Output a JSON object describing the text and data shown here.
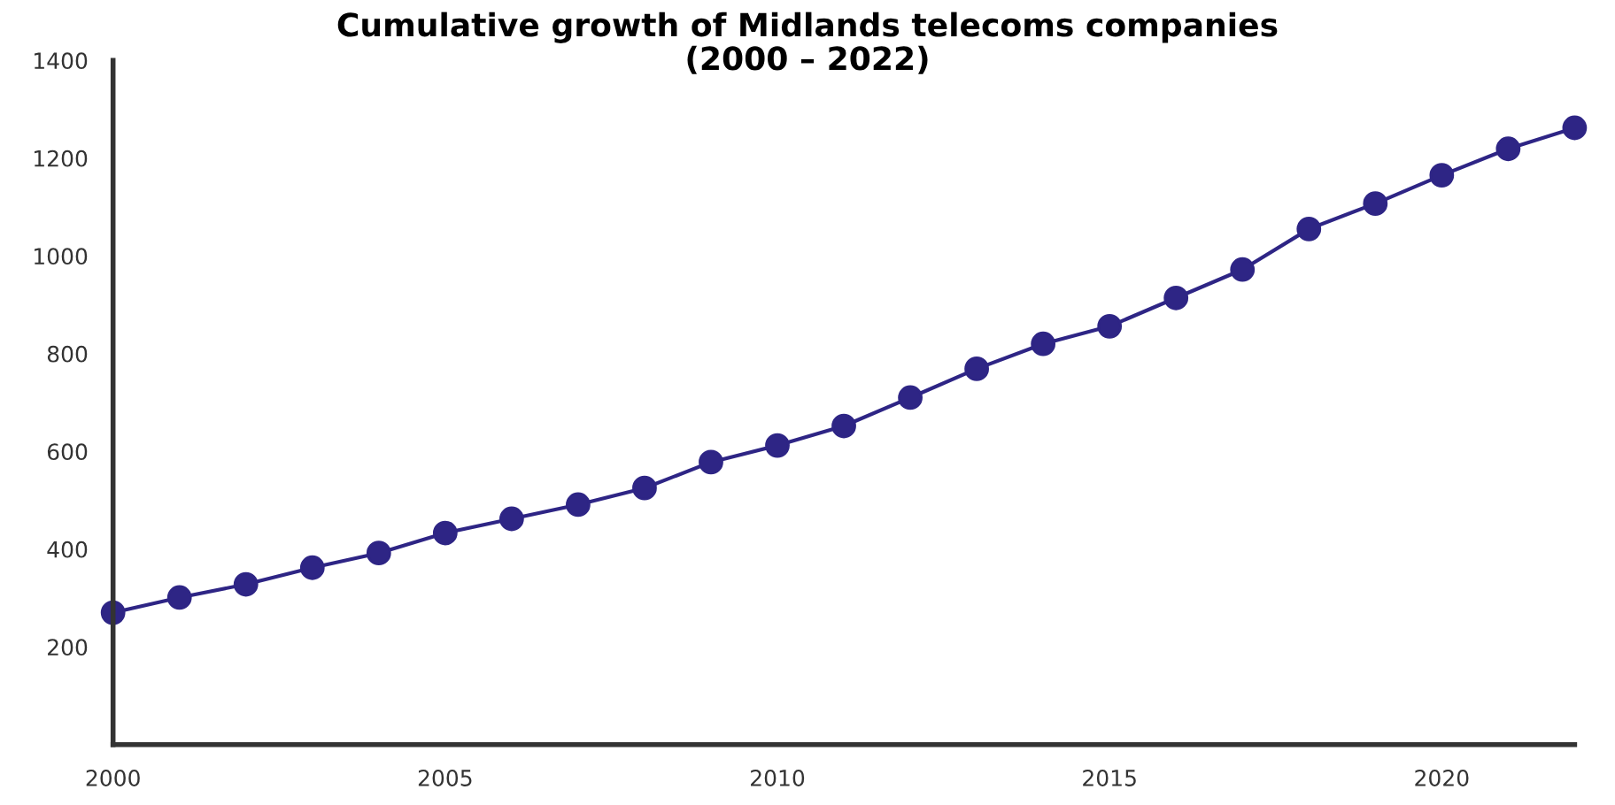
{
  "chart_data": {
    "type": "line",
    "title": "Cumulative growth of Midlands telecoms companies\n(2000 – 2022)",
    "x": [
      2000,
      2001,
      2002,
      2003,
      2004,
      2005,
      2006,
      2007,
      2008,
      2009,
      2010,
      2011,
      2012,
      2013,
      2014,
      2015,
      2016,
      2017,
      2018,
      2019,
      2020,
      2021,
      2022
    ],
    "series": [
      {
        "color": "#2e2585",
        "values": [
          270,
          301,
          328,
          362,
          392,
          433,
          462,
          491,
          525,
          578,
          612,
          652,
          710,
          769,
          820,
          856,
          914,
          972,
          1055,
          1107,
          1165,
          1219,
          1262
        ]
      }
    ],
    "xlim": [
      2000,
      2022
    ],
    "xticks": [
      2000,
      2005,
      2010,
      2015,
      2020
    ],
    "ylim": [
      0,
      1400
    ],
    "yticks": [
      200,
      400,
      600,
      800,
      1000,
      1200,
      1400
    ],
    "marker": "circle",
    "line_style": "solid",
    "grid": false,
    "legend": false
  }
}
